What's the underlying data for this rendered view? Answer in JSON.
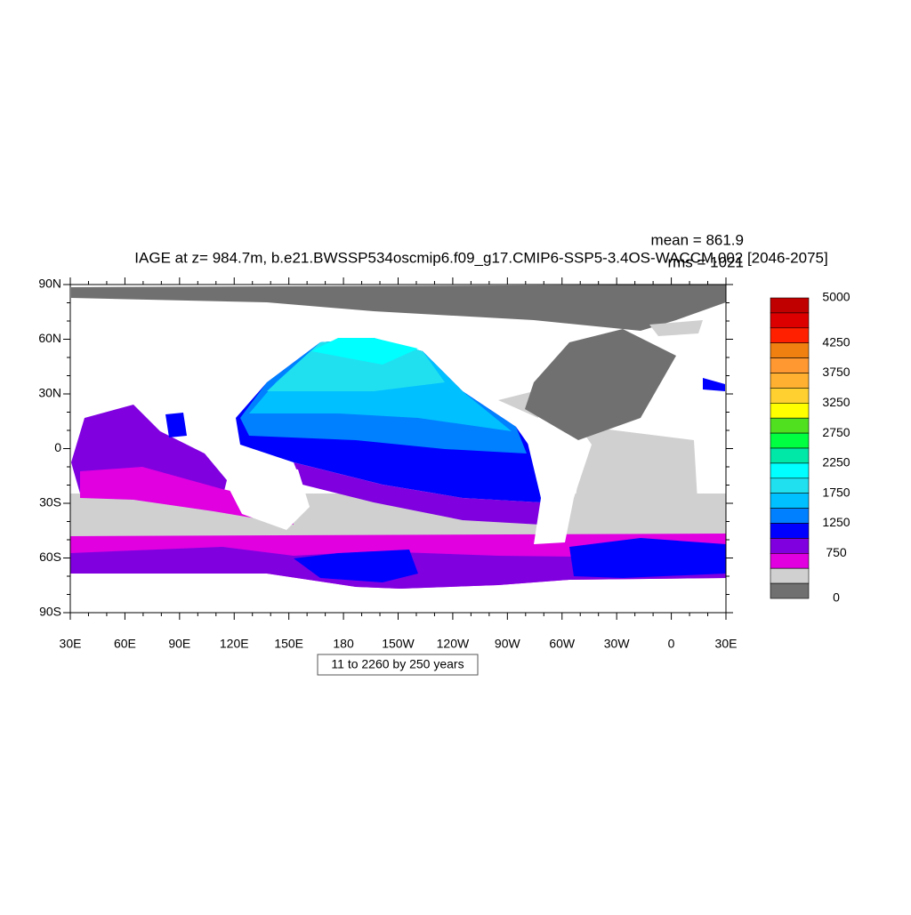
{
  "title": "IAGE at z= 984.7m, b.e21.BWSSP534oscmip6.f09_g17.CMIP6-SSP5-3.4OS-WACCM.002 [2046-2075]",
  "stats": {
    "mean": "mean = 861.9",
    "rms": "rms = 1021"
  },
  "axes": {
    "y_labels": [
      "90N",
      "60N",
      "30N",
      "0",
      "30S",
      "60S",
      "90S"
    ],
    "x_labels": [
      "30E",
      "60E",
      "90E",
      "120E",
      "150E",
      "180",
      "150W",
      "120W",
      "90W",
      "60W",
      "30W",
      "0",
      "30E"
    ]
  },
  "colorbar": {
    "labels": [
      "5000",
      "4250",
      "3750",
      "3250",
      "2750",
      "2250",
      "1750",
      "1250",
      "750",
      "0"
    ],
    "colors": [
      "#c00000",
      "#dd0000",
      "#ff2000",
      "#f08010",
      "#ff9830",
      "#ffb030",
      "#ffd030",
      "#ffff00",
      "#50e020",
      "#00ff40",
      "#00e8a8",
      "#00ffff",
      "#20e0f0",
      "#00c0ff",
      "#0080ff",
      "#0000ff",
      "#8000e0",
      "#e000e0",
      "#d0d0d0",
      "#707070"
    ]
  },
  "footer": "11 to 2260 by 250 years"
}
